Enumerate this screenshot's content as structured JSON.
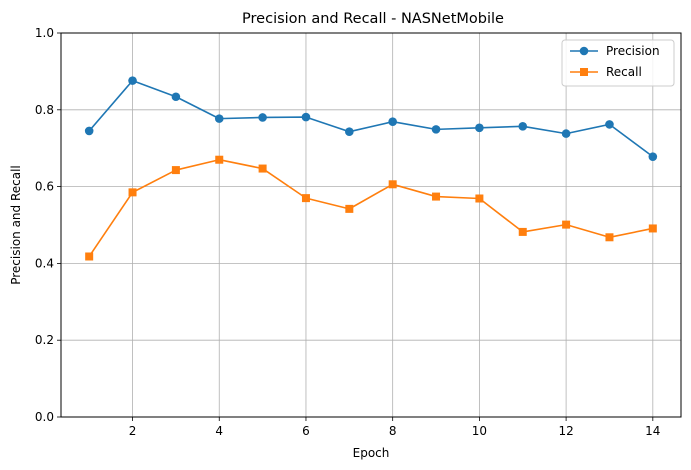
{
  "chart_data": {
    "type": "line",
    "title": "Precision and Recall - NASNetMobile",
    "xlabel": "Epoch",
    "ylabel": "Precision and Recall",
    "xlim": [
      0.35,
      14.65
    ],
    "ylim": [
      0,
      1.0
    ],
    "x_ticks": [
      2,
      4,
      6,
      8,
      10,
      12,
      14
    ],
    "x_tick_labels": [
      "2",
      "4",
      "6",
      "8",
      "10",
      "12",
      "14"
    ],
    "y_ticks": [
      0.0,
      0.2,
      0.4,
      0.6,
      0.8,
      1.0
    ],
    "y_tick_labels": [
      "0.0",
      "0.2",
      "0.4",
      "0.6",
      "0.8",
      "1.0"
    ],
    "grid": true,
    "legend_position": "top-right",
    "x": [
      1,
      2,
      3,
      4,
      5,
      6,
      7,
      8,
      9,
      10,
      11,
      12,
      13,
      14
    ],
    "series": [
      {
        "name": "Precision",
        "color": "#1f77b4",
        "marker": "circle",
        "values": [
          0.745,
          0.876,
          0.834,
          0.777,
          0.78,
          0.781,
          0.743,
          0.769,
          0.749,
          0.753,
          0.757,
          0.738,
          0.762,
          0.678
        ]
      },
      {
        "name": "Recall",
        "color": "#ff7f0e",
        "marker": "square",
        "values": [
          0.418,
          0.585,
          0.643,
          0.67,
          0.647,
          0.57,
          0.542,
          0.606,
          0.574,
          0.569,
          0.482,
          0.501,
          0.468,
          0.491
        ]
      }
    ]
  }
}
